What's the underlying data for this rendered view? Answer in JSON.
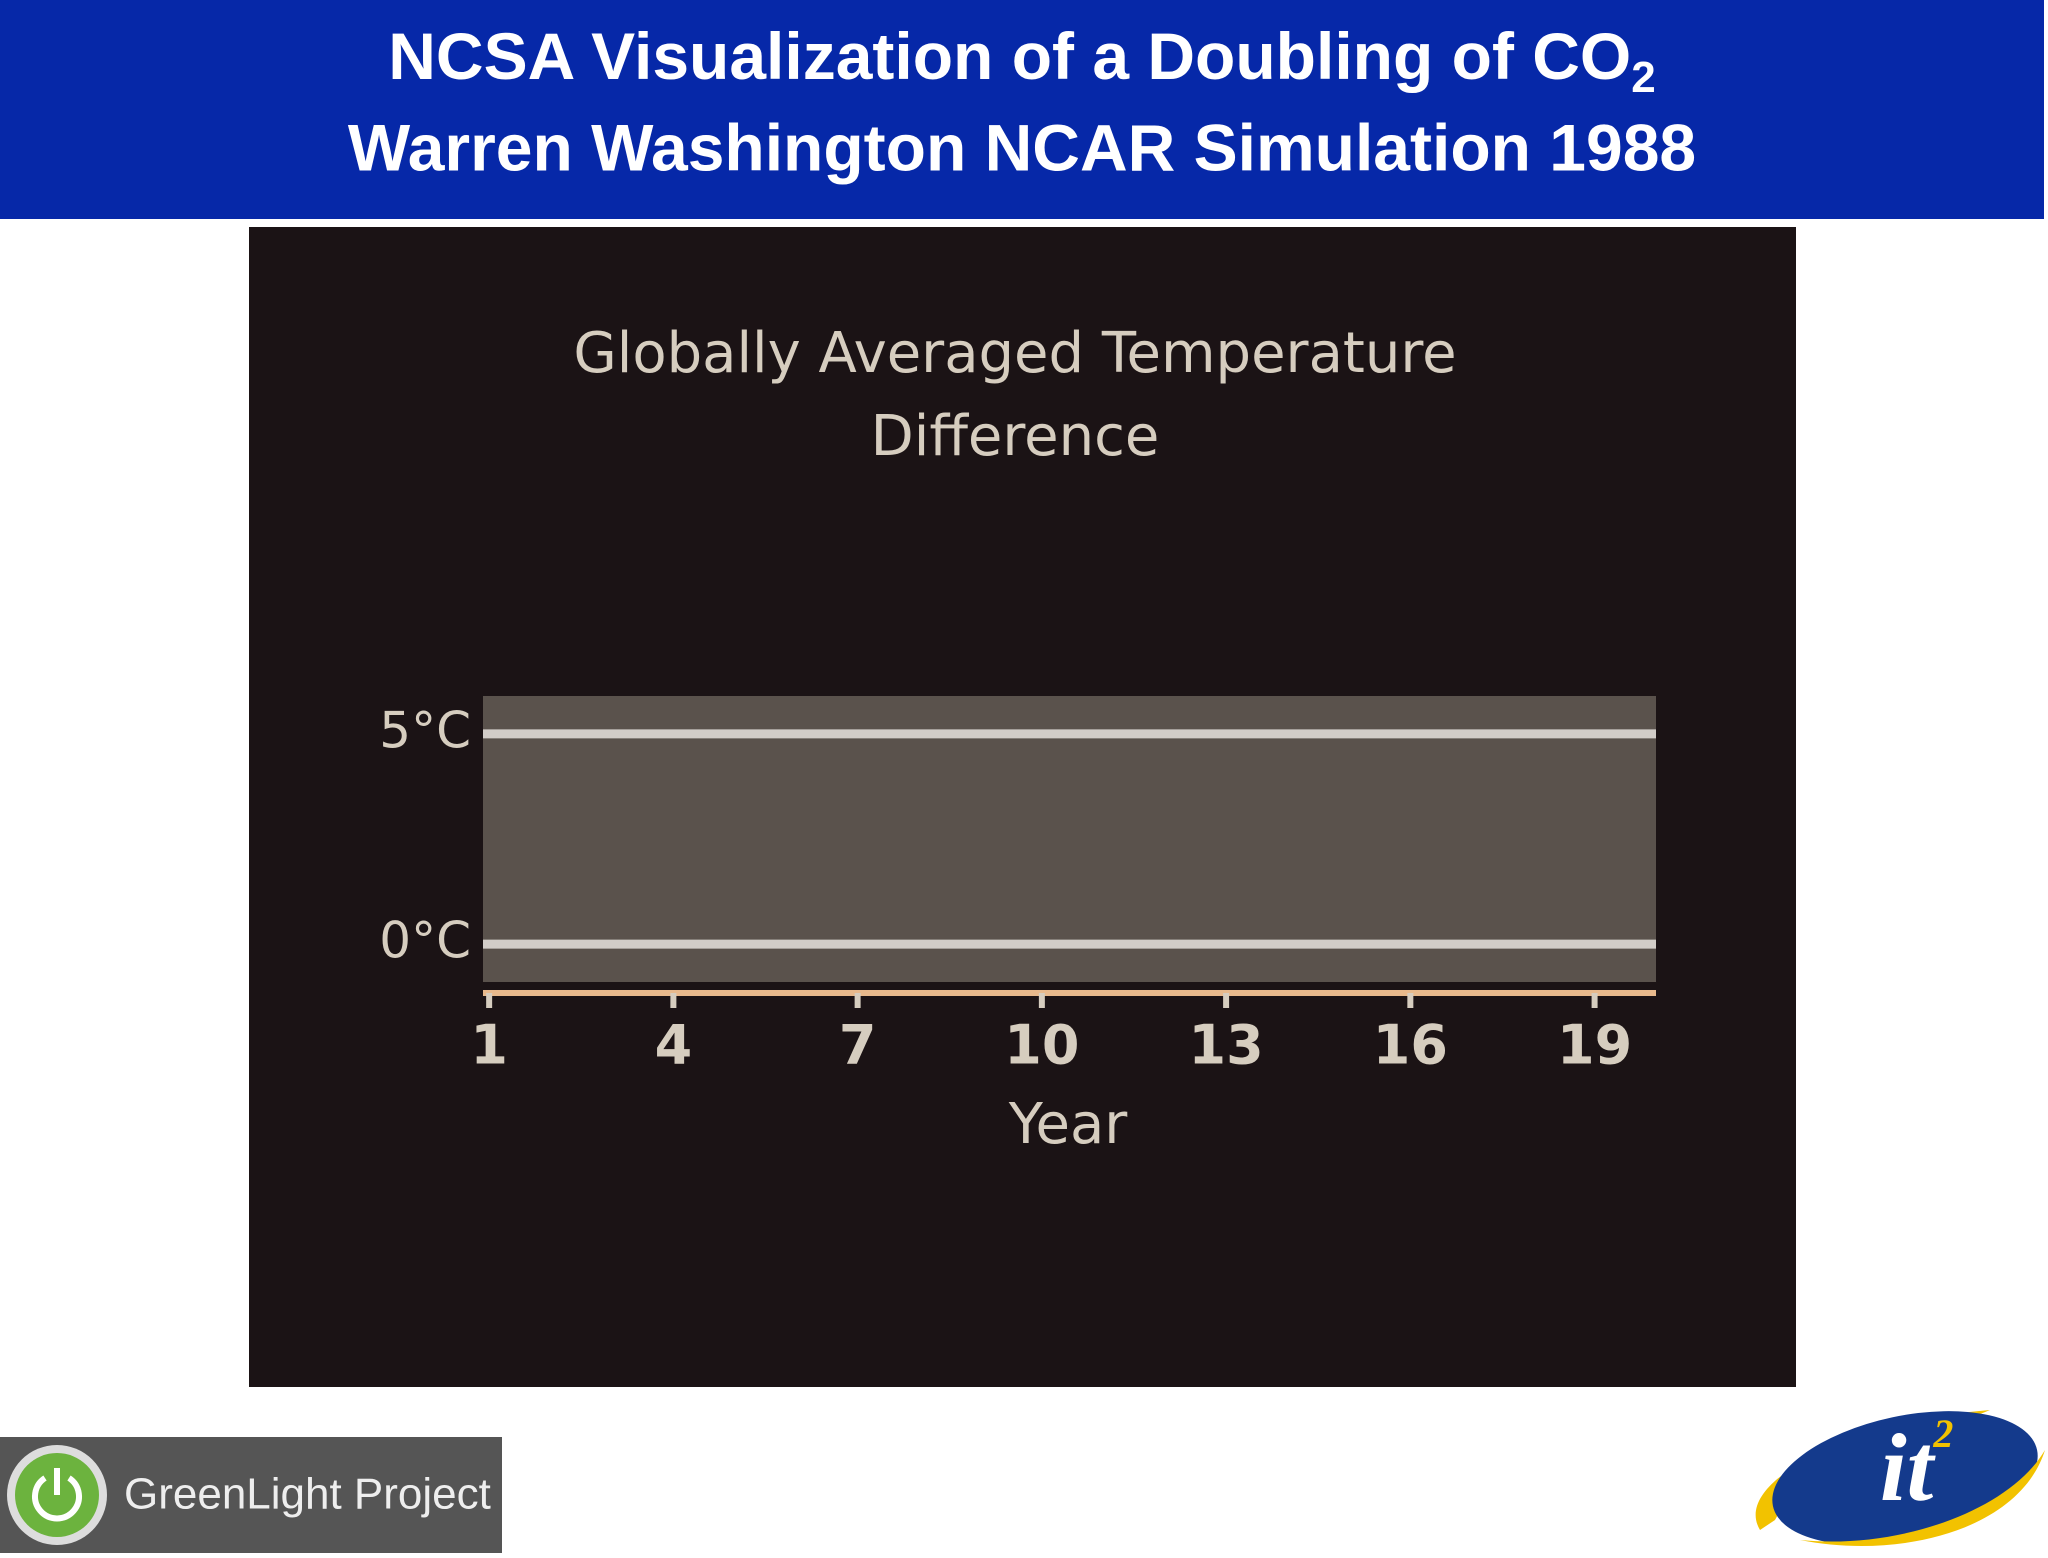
{
  "header": {
    "line1": {
      "text": "NCSA Visualization of a Doubling of CO",
      "subscript": "2"
    },
    "line2": "Warren Washington NCAR Simulation 1988"
  },
  "chart_data": {
    "type": "line",
    "title": [
      "Globally Averaged Temperature",
      "Difference"
    ],
    "xlabel": "Year",
    "xlim": [
      0.9,
      20
    ],
    "xticks": [
      1,
      4,
      7,
      10,
      13,
      16,
      19
    ],
    "ylim": [
      -0.9,
      5.9
    ],
    "yticks": [
      {
        "value": 0,
        "label": "0°C"
      },
      {
        "value": 5,
        "label": "5°C"
      }
    ],
    "grid": true,
    "grid_color": "#d2cdc8",
    "plot_color": "#5a524c",
    "axis_color": "#e8b98c"
  },
  "footer": {
    "left_logo": "GreenLight Project",
    "right_logo": {
      "text": "it",
      "superscript": "2"
    }
  }
}
